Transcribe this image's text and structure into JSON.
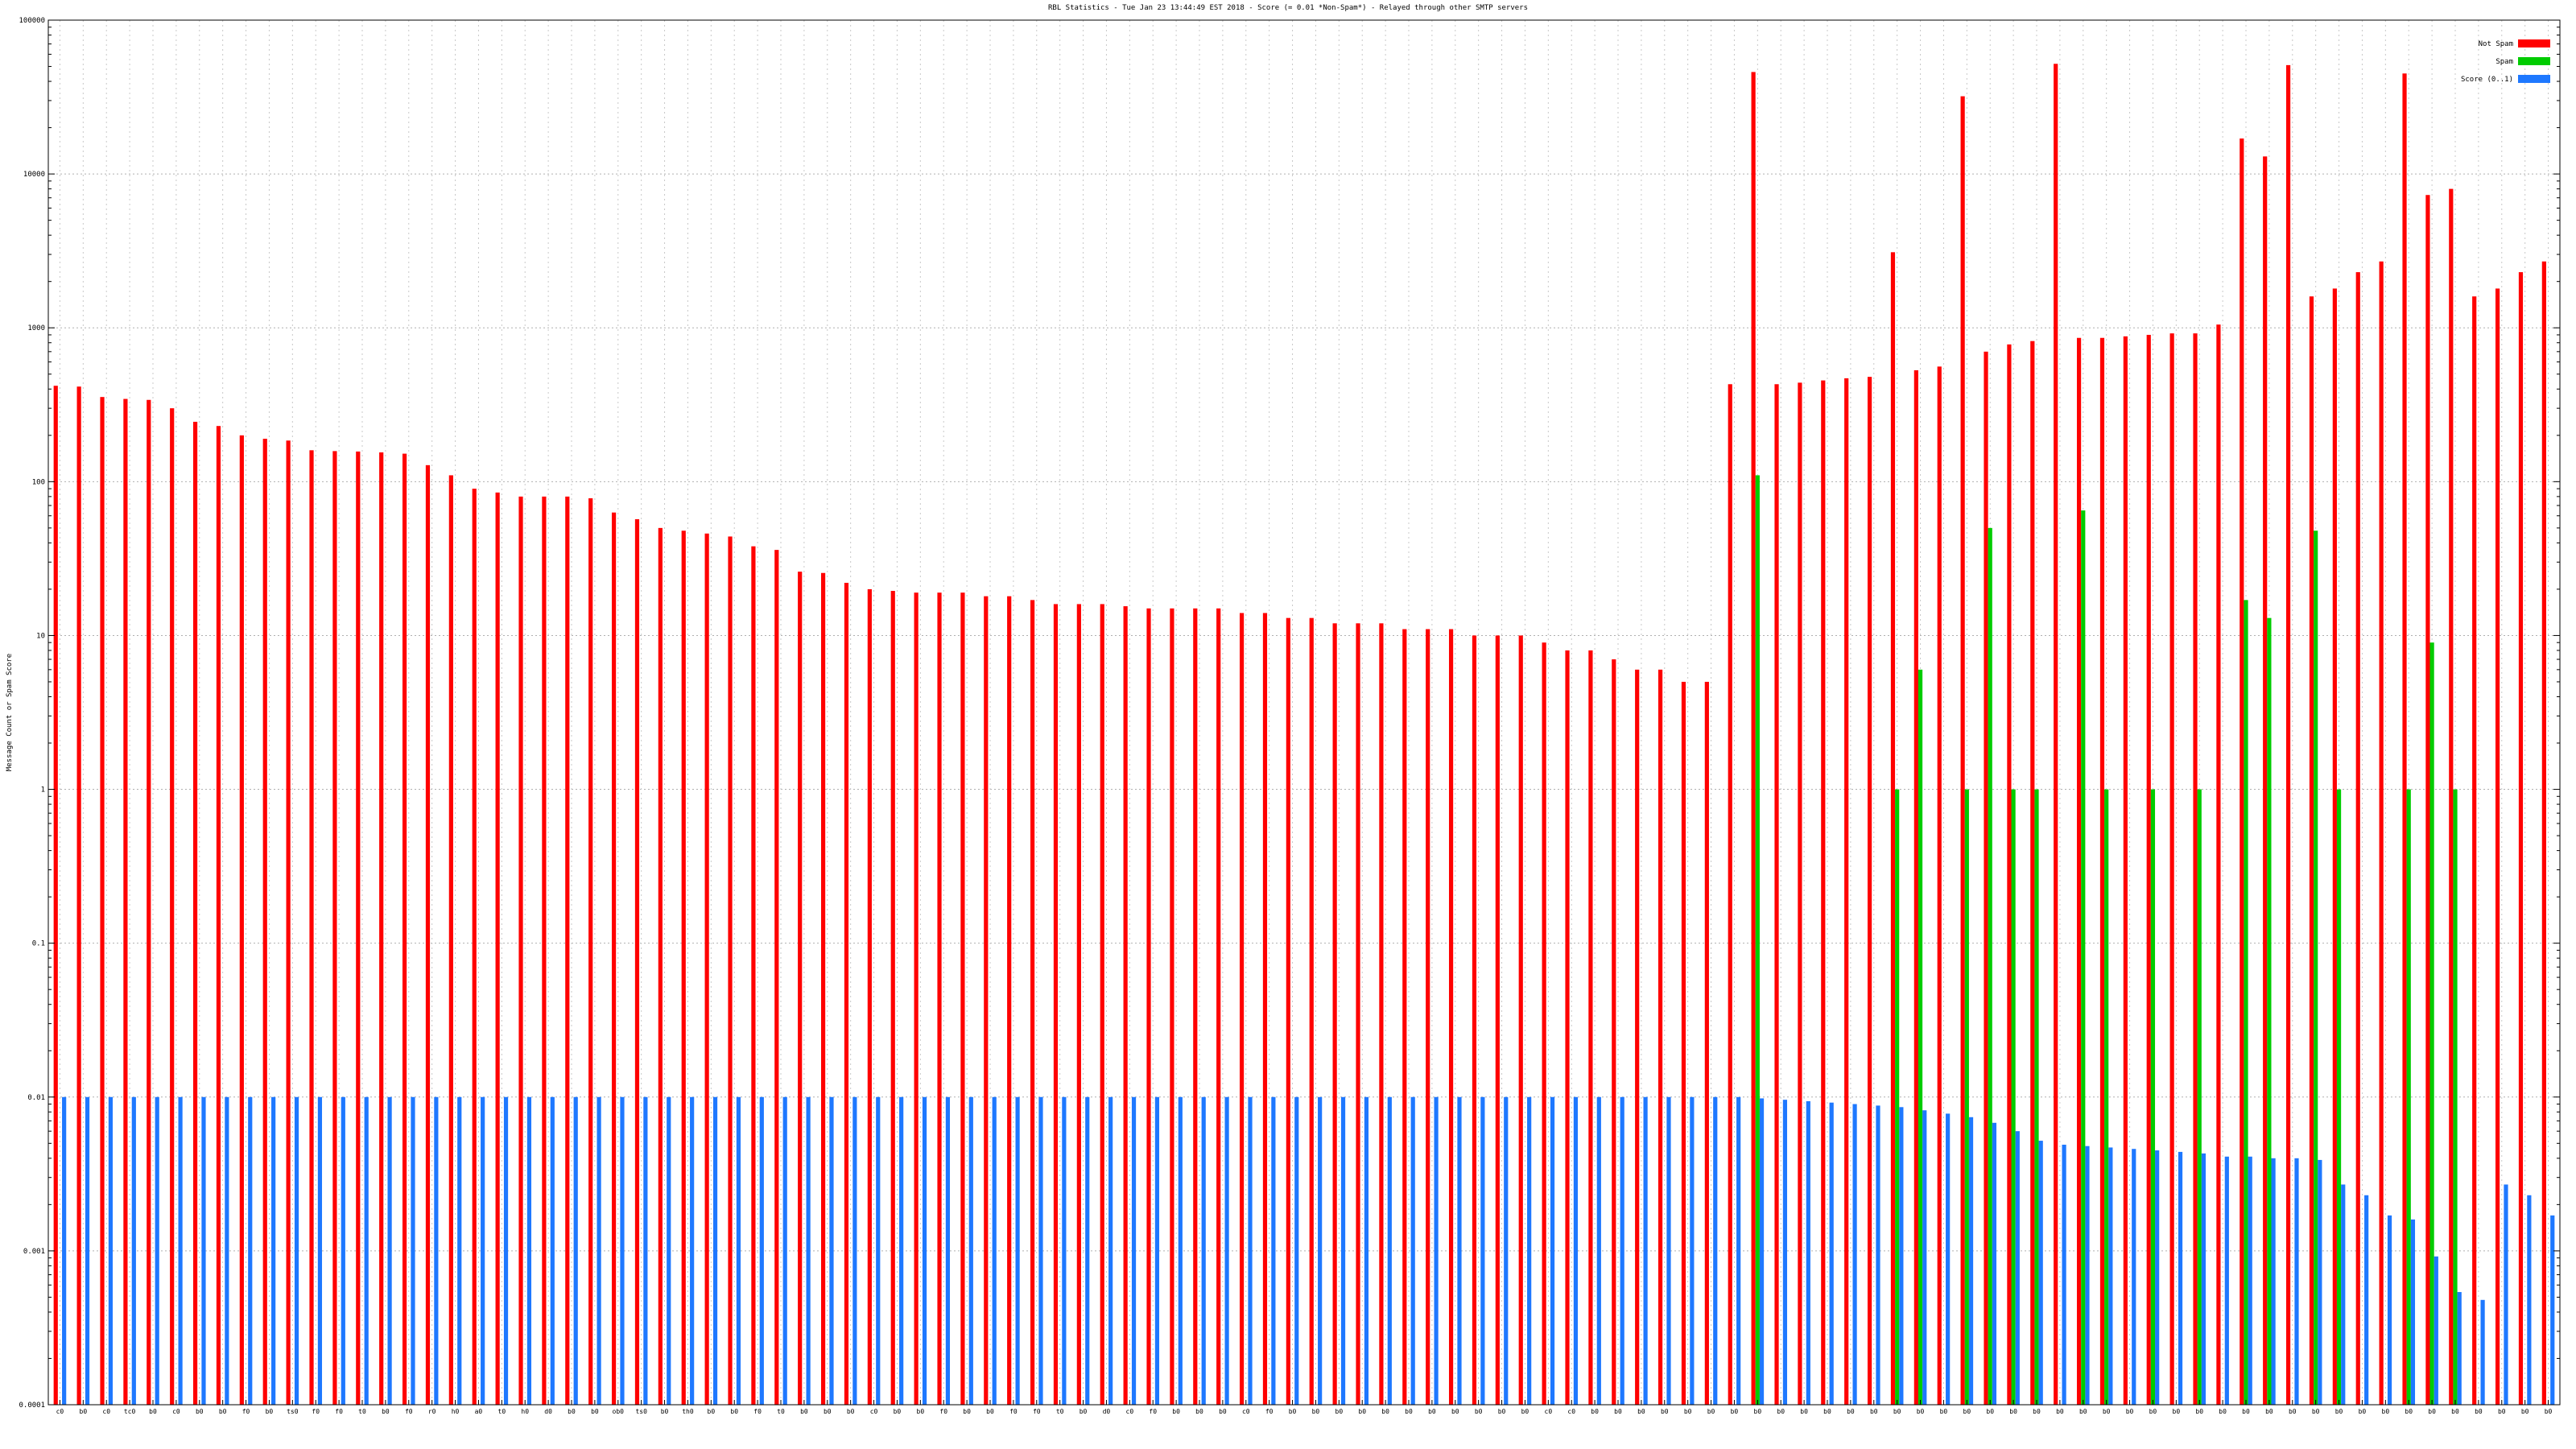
{
  "chart_data": {
    "type": "bar",
    "title": "RBL Statistics - Tue Jan 23 13:44:49 EST 2018 - Score (= 0.01 *Non-Spam*) - Relayed through other SMTP servers",
    "xlabel": "",
    "ylabel": "Message Count or Spam Score",
    "yscale": "log",
    "ylim": [
      0.0001,
      100000
    ],
    "yticks": [
      "0.0001",
      "0.001",
      "0.01",
      "0.1",
      "1",
      "10",
      "100",
      "1000",
      "10000",
      "100000"
    ],
    "grid": true,
    "legend_position": "top-right",
    "categories": [
      "c0",
      "b0",
      "c0",
      "tc0",
      "b0",
      "c0",
      "b0",
      "b0",
      "f0",
      "b0",
      "ts0",
      "f0",
      "f0",
      "t0",
      "b0",
      "f0",
      "r0",
      "h0",
      "a0",
      "t0",
      "h0",
      "d0",
      "b0",
      "b0",
      "ob0",
      "ts0",
      "b0",
      "th0",
      "b0",
      "b0",
      "f0",
      "t0",
      "b0",
      "b0",
      "b0",
      "c0",
      "b0",
      "b0",
      "f0",
      "b0",
      "b0",
      "f0",
      "f0",
      "t0",
      "b0",
      "d0",
      "c0",
      "f0",
      "b0",
      "b0",
      "b0",
      "c0",
      "f0",
      "b0",
      "b0",
      "b0",
      "b0",
      "b0",
      "b0",
      "b0",
      "b0",
      "b0",
      "b0",
      "b0",
      "c0",
      "c0",
      "b0",
      "b0",
      "b0",
      "b0",
      "b0",
      "b0",
      "b0",
      "b0",
      "b0",
      "b0",
      "b0",
      "b0",
      "b0",
      "b0",
      "b0",
      "b0",
      "b0",
      "b0",
      "b0",
      "b0",
      "b0",
      "b0",
      "b0",
      "b0",
      "b0",
      "b0",
      "b0",
      "b0",
      "b0",
      "b0",
      "b0",
      "b0",
      "b0",
      "b0",
      "b0",
      "b0",
      "b0",
      "b0",
      "b0",
      "b0",
      "b0",
      "b0"
    ],
    "series": [
      {
        "name": "Not Spam",
        "color": "#ff0000",
        "values": [
          420,
          415,
          355,
          345,
          340,
          300,
          245,
          230,
          200,
          190,
          185,
          160,
          158,
          157,
          155,
          152,
          128,
          110,
          90,
          85,
          80,
          80,
          80,
          78,
          63,
          57,
          50,
          48,
          46,
          44,
          38,
          36,
          26,
          25.5,
          22,
          20,
          19.5,
          19,
          19,
          19,
          18,
          18,
          17,
          16,
          16,
          16,
          15.5,
          15,
          15,
          15,
          15,
          14,
          14,
          13,
          13,
          12,
          12,
          12,
          11,
          11,
          11,
          10,
          10,
          10,
          9,
          8,
          8,
          7,
          6,
          6,
          5,
          5,
          430,
          46000,
          430,
          440,
          455,
          470,
          480,
          3100,
          530,
          560,
          32000,
          700,
          780,
          820,
          52000,
          860,
          860,
          880,
          900,
          920,
          920,
          1050,
          17000,
          13000,
          51000,
          1600,
          1800,
          2300,
          2700,
          45000,
          7300,
          8000,
          1600,
          1800,
          2300,
          2700
        ]
      },
      {
        "name": "Spam",
        "color": "#00cc00",
        "values": [
          0,
          0,
          0,
          0,
          0,
          0,
          0,
          0,
          0,
          0,
          0,
          0,
          0,
          0,
          0,
          0,
          0,
          0,
          0,
          0,
          0,
          0,
          0,
          0,
          0,
          0,
          0,
          0,
          0,
          0,
          0,
          0,
          0,
          0,
          0,
          0,
          0,
          0,
          0,
          0,
          0,
          0,
          0,
          0,
          0,
          0,
          0,
          0,
          0,
          0,
          0,
          0,
          0,
          0,
          0,
          0,
          0,
          0,
          0,
          0,
          0,
          0,
          0,
          0,
          0,
          0,
          0,
          0,
          0,
          0,
          0,
          0,
          0,
          110,
          0,
          0,
          0,
          0,
          0,
          1,
          6,
          0,
          1,
          50,
          1,
          1,
          0,
          65,
          1,
          0,
          1,
          0,
          1,
          0,
          17,
          13,
          0,
          48,
          1,
          0,
          0,
          1,
          9,
          1,
          0,
          0,
          0,
          0
        ]
      },
      {
        "name": "Score (0..1)",
        "color": "#1e78ff",
        "values": [
          0.01,
          0.01,
          0.01,
          0.01,
          0.01,
          0.01,
          0.01,
          0.01,
          0.01,
          0.01,
          0.01,
          0.01,
          0.01,
          0.01,
          0.01,
          0.01,
          0.01,
          0.01,
          0.01,
          0.01,
          0.01,
          0.01,
          0.01,
          0.01,
          0.01,
          0.01,
          0.01,
          0.01,
          0.01,
          0.01,
          0.01,
          0.01,
          0.01,
          0.01,
          0.01,
          0.01,
          0.01,
          0.01,
          0.01,
          0.01,
          0.01,
          0.01,
          0.01,
          0.01,
          0.01,
          0.01,
          0.01,
          0.01,
          0.01,
          0.01,
          0.01,
          0.01,
          0.01,
          0.01,
          0.01,
          0.01,
          0.01,
          0.01,
          0.01,
          0.01,
          0.01,
          0.01,
          0.01,
          0.01,
          0.01,
          0.01,
          0.01,
          0.01,
          0.01,
          0.01,
          0.01,
          0.01,
          0.01,
          0.0098,
          0.0096,
          0.0094,
          0.0092,
          0.009,
          0.0088,
          0.0086,
          0.0082,
          0.0078,
          0.0074,
          0.0068,
          0.006,
          0.0052,
          0.0049,
          0.0048,
          0.0047,
          0.0046,
          0.0045,
          0.0044,
          0.0043,
          0.0041,
          0.0041,
          0.004,
          0.004,
          0.0039,
          0.0027,
          0.0023,
          0.0017,
          0.0016,
          0.00092,
          0.00054,
          0.00048,
          0.0027,
          0.0023,
          0.0017
        ]
      }
    ]
  }
}
